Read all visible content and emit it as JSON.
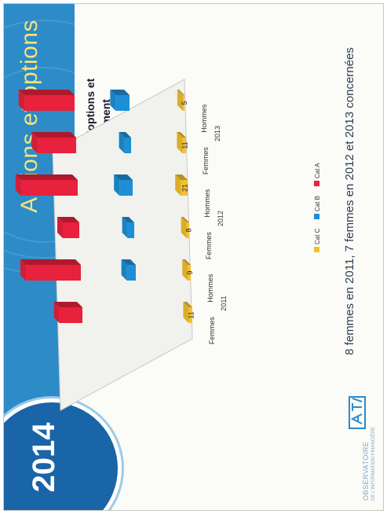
{
  "slide": {
    "title": "Actions et options",
    "year": "2014",
    "footnote": "8 femmes en 2011, 7 femmes en 2012 et 2013 concernées",
    "logo_text": "OBSERVATOIRE",
    "logo_sub": "DE L'INFORMATION FINANCIÈRE"
  },
  "colors": {
    "banner": "#2d8bc7",
    "title": "#f6e27a",
    "badge": "#1a64a8",
    "cat_a": "#e8213c",
    "cat_b": "#1e8fd6",
    "cat_c": "#f2c12e"
  },
  "chart_data": {
    "type": "bar",
    "title_lines": [
      "Evolution moyenne en K€ des attributions d'options et",
      "d'actions hommes - femmes par compartiment"
    ],
    "categories": [
      "Femmes",
      "Hommes",
      "Femmes",
      "Hommes",
      "Femmes",
      "Hommes"
    ],
    "years": [
      "2011",
      "2012",
      "2013"
    ],
    "series": [
      {
        "name": "Cat C",
        "values": [
          11,
          9,
          8,
          21,
          11,
          5
        ],
        "labels": [
          "11",
          "9",
          "8",
          "21",
          "11",
          "5"
        ]
      },
      {
        "name": "Cat B",
        "values": [
          0,
          27,
          20,
          40,
          20,
          42
        ],
        "labels": [
          "",
          "",
          "",
          "",
          "",
          ""
        ]
      },
      {
        "name": "Cat A",
        "values": [
          70,
          167,
          50,
          172,
          118,
          153
        ],
        "labels": [
          "",
          "",
          "",
          "",
          "",
          ""
        ]
      }
    ],
    "legend": [
      "Cat C",
      "Cat B",
      "Cat A"
    ],
    "legend_placement": "bottom"
  }
}
